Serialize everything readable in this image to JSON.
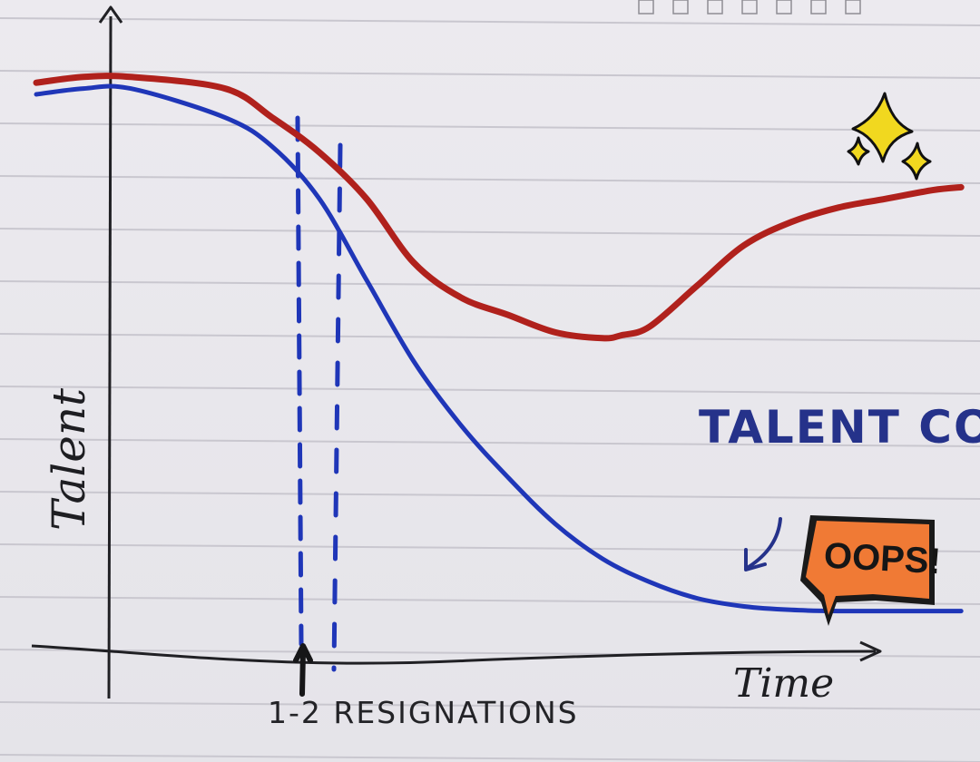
{
  "chart_data": {
    "type": "line",
    "xlabel": "Time",
    "ylabel": "Talent",
    "grid": false,
    "xlim": [
      0,
      100
    ],
    "ylim": [
      0,
      100
    ],
    "series": [
      {
        "color": "#b0211c",
        "x": [
          0,
          5,
          10,
          20,
          25,
          30,
          35,
          40,
          45,
          50,
          55,
          60,
          62,
          65,
          70,
          75,
          80,
          85,
          90,
          95,
          98
        ],
        "y": [
          92,
          93,
          93,
          91,
          86,
          80,
          72,
          61,
          55,
          52,
          49,
          48,
          48.5,
          50,
          57,
          64,
          68,
          70.5,
          72,
          73.5,
          74
        ]
      },
      {
        "color": "#1f36b8",
        "x": [
          0,
          5,
          10,
          20,
          25,
          30,
          35,
          40,
          45,
          50,
          55,
          60,
          65,
          70,
          75,
          80,
          85,
          90,
          95,
          98
        ],
        "y": [
          90,
          91,
          91,
          86,
          81,
          72,
          58,
          44,
          33,
          24,
          16,
          10,
          6,
          3.2,
          1.8,
          1.2,
          1,
          1,
          1,
          1
        ]
      }
    ],
    "annotations": [
      {
        "text": "1-2 RESIGNATIONS",
        "x_range": [
          20,
          24
        ]
      },
      {
        "text": "TALENT COOLING",
        "target": "blue-series"
      },
      {
        "text": "OOPS!"
      }
    ]
  },
  "colors": {
    "paper": "#e9e8ec",
    "rule": "#c9c7cf",
    "ink": "#1b1b1f",
    "red": "#b0211c",
    "blue": "#1f36b8",
    "annotation": "#25328a",
    "badge": "#f07a35",
    "sparkle": "#f1d81f"
  },
  "icons": {
    "sparkles": "sparkles-icon",
    "arrow": "curved-arrow-icon",
    "badge": "speech-bubble-icon"
  }
}
